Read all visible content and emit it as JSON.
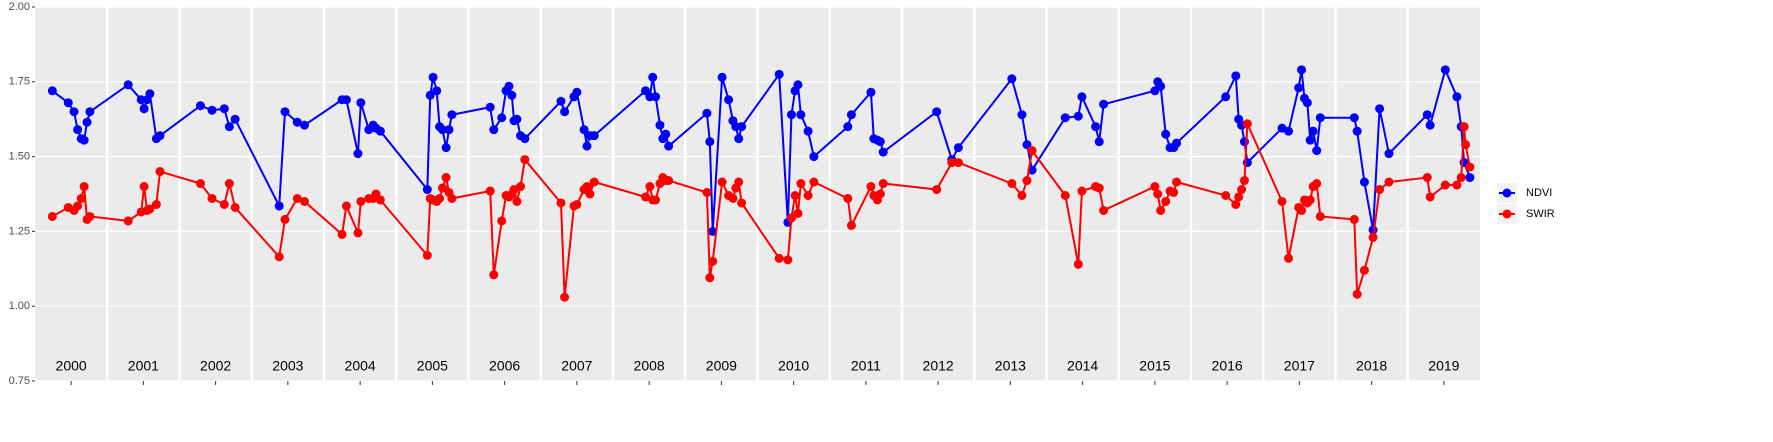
{
  "chart_data": {
    "type": "line",
    "xlim": [
      2000,
      2020
    ],
    "ylim": [
      0.75,
      2.0
    ],
    "yticks": [
      0.75,
      {
        "value": 1.0,
        "label": "1.00"
      },
      1.25,
      {
        "value": 1.5,
        "label": "1.50"
      },
      1.75,
      {
        "value": 2.0,
        "label": "2.00"
      }
    ],
    "xticks": [
      {
        "value": 2000.5,
        "label": "2000"
      },
      {
        "value": 2001.5,
        "label": "2001"
      },
      {
        "value": 2002.5,
        "label": "2002"
      },
      {
        "value": 2003.5,
        "label": "2003"
      },
      {
        "value": 2004.5,
        "label": "2004"
      },
      {
        "value": 2005.5,
        "label": "2005"
      },
      {
        "value": 2006.5,
        "label": "2006"
      },
      {
        "value": 2007.5,
        "label": "2007"
      },
      {
        "value": 2008.5,
        "label": "2008"
      },
      {
        "value": 2009.5,
        "label": "2009"
      },
      {
        "value": 2010.5,
        "label": "2010"
      },
      {
        "value": 2011.5,
        "label": "2011"
      },
      {
        "value": 2012.5,
        "label": "2012"
      },
      {
        "value": 2013.5,
        "label": "2013"
      },
      {
        "value": 2014.5,
        "label": "2014"
      },
      {
        "value": 2015.5,
        "label": "2015"
      },
      {
        "value": 2016.5,
        "label": "2016"
      },
      {
        "value": 2017.5,
        "label": "2017"
      },
      {
        "value": 2018.5,
        "label": "2018"
      },
      {
        "value": 2019.5,
        "label": "2019"
      }
    ],
    "xgrid_lines": [
      2001,
      2002,
      2003,
      2004,
      2005,
      2006,
      2007,
      2008,
      2009,
      2010,
      2011,
      2012,
      2013,
      2014,
      2015,
      2016,
      2017,
      2018,
      2019
    ],
    "grid": true,
    "legend_position": "right",
    "series": [
      {
        "name": "NDVI",
        "color": "#0000ff",
        "x": [
          2000.24,
          2000.46,
          2000.54,
          2000.59,
          2000.64,
          2000.68,
          2000.72,
          2000.76,
          2001.29,
          2001.47,
          2001.51,
          2001.55,
          2001.59,
          2001.68,
          2001.73,
          2002.29,
          2002.45,
          2002.62,
          2002.69,
          2002.77,
          2003.38,
          2003.46,
          2003.63,
          2003.73,
          2004.25,
          2004.31,
          2004.47,
          2004.51,
          2004.62,
          2004.68,
          2004.72,
          2004.78,
          2005.43,
          2005.47,
          2005.51,
          2005.56,
          2005.6,
          2005.64,
          2005.69,
          2005.73,
          2005.77,
          2006.3,
          2006.35,
          2006.46,
          2006.52,
          2006.56,
          2006.6,
          2006.63,
          2006.67,
          2006.72,
          2006.78,
          2007.28,
          2007.33,
          2007.46,
          2007.5,
          2007.6,
          2007.64,
          2007.68,
          2007.74,
          2008.45,
          2008.51,
          2008.55,
          2008.59,
          2008.65,
          2008.69,
          2008.73,
          2008.77,
          2009.3,
          2009.34,
          2009.38,
          2009.51,
          2009.6,
          2009.66,
          2009.7,
          2009.74,
          2009.78,
          2010.3,
          2010.42,
          2010.47,
          2010.52,
          2010.56,
          2010.6,
          2010.7,
          2010.78,
          2011.25,
          2011.3,
          2011.57,
          2011.61,
          2011.66,
          2011.7,
          2011.74,
          2012.48,
          2012.69,
          2012.78,
          2013.52,
          2013.66,
          2013.73,
          2013.8,
          2014.26,
          2014.44,
          2014.49,
          2014.68,
          2014.73,
          2014.79,
          2015.5,
          2015.54,
          2015.58,
          2015.65,
          2015.71,
          2015.76,
          2015.8,
          2016.48,
          2016.62,
          2016.66,
          2016.7,
          2016.74,
          2016.78,
          2017.26,
          2017.35,
          2017.49,
          2017.53,
          2017.57,
          2017.61,
          2017.65,
          2017.69,
          2017.74,
          2017.79,
          2018.26,
          2018.3,
          2018.4,
          2018.52,
          2018.61,
          2018.74,
          2019.27,
          2019.31,
          2019.52,
          2019.68,
          2019.74,
          2019.78,
          2019.86
        ],
        "values": [
          1.72,
          1.68,
          1.65,
          1.59,
          1.56,
          1.555,
          1.615,
          1.65,
          1.74,
          1.69,
          1.66,
          1.69,
          1.71,
          1.56,
          1.57,
          1.67,
          1.655,
          1.66,
          1.6,
          1.625,
          1.335,
          1.65,
          1.615,
          1.605,
          1.69,
          1.69,
          1.51,
          1.68,
          1.59,
          1.605,
          1.595,
          1.585,
          1.39,
          1.705,
          1.765,
          1.72,
          1.6,
          1.59,
          1.53,
          1.59,
          1.64,
          1.665,
          1.59,
          1.63,
          1.72,
          1.735,
          1.705,
          1.62,
          1.625,
          1.57,
          1.56,
          1.685,
          1.65,
          1.7,
          1.715,
          1.59,
          1.535,
          1.57,
          1.57,
          1.72,
          1.7,
          1.765,
          1.7,
          1.605,
          1.56,
          1.575,
          1.535,
          1.645,
          1.55,
          1.25,
          1.765,
          1.69,
          1.62,
          1.6,
          1.56,
          1.6,
          1.775,
          1.28,
          1.64,
          1.72,
          1.74,
          1.64,
          1.585,
          1.5,
          1.6,
          1.64,
          1.715,
          1.56,
          1.555,
          1.55,
          1.515,
          1.65,
          1.49,
          1.53,
          1.76,
          1.64,
          1.54,
          1.455,
          1.63,
          1.635,
          1.7,
          1.6,
          1.55,
          1.675,
          1.72,
          1.75,
          1.735,
          1.575,
          1.53,
          1.53,
          1.545,
          1.7,
          1.77,
          1.625,
          1.605,
          1.55,
          1.48,
          1.595,
          1.585,
          1.73,
          1.79,
          1.695,
          1.68,
          1.555,
          1.585,
          1.52,
          1.63,
          1.63,
          1.585,
          1.415,
          1.255,
          1.66,
          1.51,
          1.64,
          1.605,
          1.79,
          1.7,
          1.6,
          1.48,
          1.43
        ]
      },
      {
        "name": "SWIR",
        "color": "#ff0000",
        "x": [
          2000.24,
          2000.46,
          2000.54,
          2000.59,
          2000.64,
          2000.68,
          2000.72,
          2000.76,
          2001.29,
          2001.47,
          2001.51,
          2001.55,
          2001.59,
          2001.68,
          2001.73,
          2002.29,
          2002.45,
          2002.62,
          2002.69,
          2002.77,
          2003.38,
          2003.46,
          2003.63,
          2003.73,
          2004.25,
          2004.31,
          2004.47,
          2004.51,
          2004.62,
          2004.68,
          2004.72,
          2004.78,
          2005.43,
          2005.47,
          2005.51,
          2005.56,
          2005.6,
          2005.64,
          2005.69,
          2005.73,
          2005.77,
          2006.3,
          2006.35,
          2006.46,
          2006.52,
          2006.56,
          2006.6,
          2006.63,
          2006.67,
          2006.72,
          2006.78,
          2007.28,
          2007.33,
          2007.46,
          2007.5,
          2007.6,
          2007.64,
          2007.68,
          2007.74,
          2008.45,
          2008.51,
          2008.55,
          2008.59,
          2008.65,
          2008.69,
          2008.73,
          2008.77,
          2009.3,
          2009.34,
          2009.38,
          2009.51,
          2009.6,
          2009.66,
          2009.7,
          2009.74,
          2009.78,
          2010.3,
          2010.42,
          2010.47,
          2010.52,
          2010.56,
          2010.6,
          2010.7,
          2010.78,
          2011.25,
          2011.3,
          2011.57,
          2011.61,
          2011.66,
          2011.7,
          2011.74,
          2012.48,
          2012.69,
          2012.78,
          2013.52,
          2013.66,
          2013.73,
          2013.8,
          2014.26,
          2014.44,
          2014.49,
          2014.68,
          2014.73,
          2014.79,
          2015.5,
          2015.54,
          2015.58,
          2015.65,
          2015.71,
          2015.76,
          2015.8,
          2016.48,
          2016.62,
          2016.66,
          2016.7,
          2016.74,
          2016.78,
          2017.26,
          2017.35,
          2017.49,
          2017.53,
          2017.57,
          2017.61,
          2017.65,
          2017.69,
          2017.74,
          2017.79,
          2018.26,
          2018.3,
          2018.4,
          2018.52,
          2018.61,
          2018.74,
          2019.27,
          2019.31,
          2019.52,
          2019.68,
          2019.74,
          2019.78,
          2019.8,
          2019.86
        ],
        "values": [
          1.3,
          1.33,
          1.32,
          1.335,
          1.36,
          1.4,
          1.29,
          1.3,
          1.285,
          1.315,
          1.4,
          1.32,
          1.325,
          1.34,
          1.45,
          1.41,
          1.36,
          1.34,
          1.41,
          1.33,
          1.165,
          1.29,
          1.36,
          1.35,
          1.24,
          1.335,
          1.245,
          1.35,
          1.36,
          1.36,
          1.375,
          1.355,
          1.17,
          1.36,
          1.355,
          1.35,
          1.36,
          1.395,
          1.43,
          1.38,
          1.36,
          1.385,
          1.105,
          1.285,
          1.37,
          1.365,
          1.375,
          1.39,
          1.35,
          1.4,
          1.49,
          1.345,
          1.03,
          1.335,
          1.34,
          1.39,
          1.4,
          1.375,
          1.415,
          1.365,
          1.4,
          1.355,
          1.355,
          1.41,
          1.43,
          1.42,
          1.42,
          1.38,
          1.095,
          1.15,
          1.415,
          1.37,
          1.36,
          1.395,
          1.415,
          1.345,
          1.16,
          1.155,
          1.295,
          1.37,
          1.31,
          1.41,
          1.37,
          1.415,
          1.36,
          1.27,
          1.4,
          1.37,
          1.355,
          1.375,
          1.41,
          1.39,
          1.48,
          1.48,
          1.41,
          1.37,
          1.42,
          1.52,
          1.37,
          1.14,
          1.385,
          1.4,
          1.395,
          1.32,
          1.4,
          1.375,
          1.32,
          1.35,
          1.385,
          1.38,
          1.415,
          1.37,
          1.34,
          1.365,
          1.39,
          1.42,
          1.61,
          1.35,
          1.16,
          1.33,
          1.32,
          1.355,
          1.345,
          1.355,
          1.4,
          1.41,
          1.3,
          1.29,
          1.04,
          1.12,
          1.23,
          1.39,
          1.415,
          1.43,
          1.365,
          1.405,
          1.405,
          1.43,
          1.6,
          1.54,
          1.465
        ]
      }
    ]
  }
}
